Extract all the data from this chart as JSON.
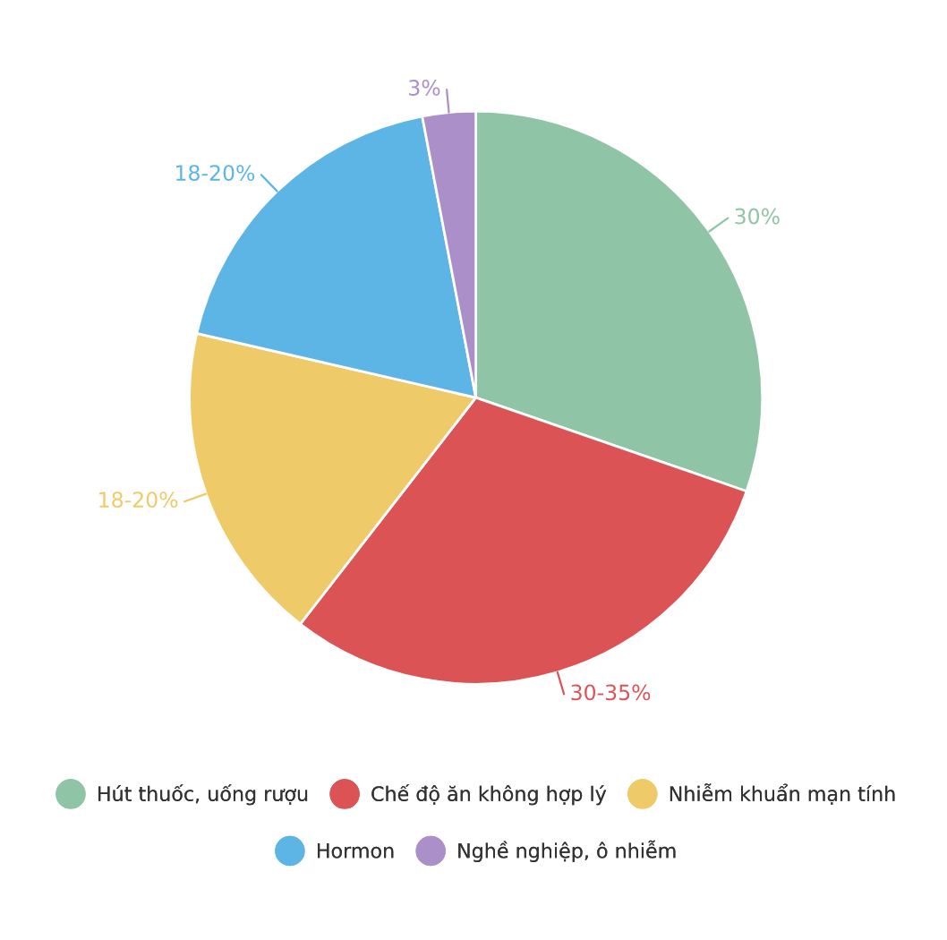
{
  "chart_data": {
    "type": "pie",
    "categories": [
      "Hút thuốc, uống rượu",
      "Chế độ ăn không hợp lý",
      "Nhiễm khuẩn mạn tính",
      "Hormon",
      "Nghề nghiệp, ô nhiễm"
    ],
    "values": [
      30.3,
      30.2,
      18.1,
      18.4,
      3.0
    ],
    "value_labels": [
      "30%",
      "30-35%",
      "18-20%",
      "18-20%",
      "3%"
    ],
    "colors": [
      "#8fc4a7",
      "#dc5356",
      "#eeca68",
      "#5db5e5",
      "#ab8fc9"
    ],
    "legend": "bottom"
  }
}
